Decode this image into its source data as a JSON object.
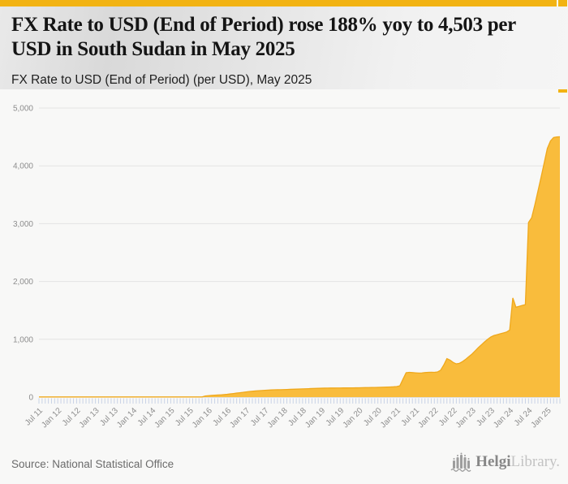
{
  "header": {
    "title": "FX Rate to USD (End of Period) rose 188% yoy to 4,503 per USD in South Sudan in May 2025",
    "subtitle": "FX Rate to USD (End of Period) (per USD), May 2025"
  },
  "footer": {
    "source": "Source: National Statistical Office",
    "logo_bold": "Helgi",
    "logo_light": "Library."
  },
  "colors": {
    "accent": "#F2B313",
    "area_fill": "#F9BC3C",
    "area_stroke": "#EFA81C",
    "gridline": "#e4e4e3",
    "axis_line": "#c8c8c8",
    "tick": "#c9d3e6",
    "axis_label": "#8d8d8d"
  },
  "chart_data": {
    "type": "area",
    "title": "FX Rate to USD (End of Period) (per USD), May 2025",
    "country": "South Sudan",
    "unit": "per USD",
    "frequency": "monthly",
    "start": "2011-07",
    "end": "2025-05",
    "latest": {
      "period": "May 2025",
      "value": 4503,
      "yoy_change_pct": 188
    },
    "values": [
      3,
      3,
      3,
      3,
      3,
      3,
      3,
      3,
      3,
      3,
      3,
      3,
      3,
      3,
      3,
      3,
      3,
      3,
      3,
      3,
      3,
      3,
      3,
      3,
      3,
      3,
      3,
      3,
      3,
      3,
      3,
      3,
      3,
      3,
      3,
      3,
      3,
      3,
      3,
      3,
      3,
      3,
      3,
      3,
      3,
      3,
      3,
      3,
      3,
      3,
      3,
      3,
      3,
      19,
      25,
      30,
      33,
      36,
      39,
      43,
      48,
      55,
      62,
      70,
      76,
      82,
      90,
      96,
      101,
      106,
      110,
      114,
      118,
      121,
      124,
      126,
      127,
      128,
      130,
      132,
      134,
      136,
      138,
      140,
      142,
      144,
      146,
      148,
      150,
      152,
      154,
      155,
      156,
      157,
      157,
      158,
      158,
      159,
      159,
      160,
      160,
      161,
      162,
      163,
      164,
      165,
      166,
      167,
      168,
      170,
      172,
      174,
      176,
      178,
      183,
      195,
      310,
      422,
      428,
      424,
      420,
      416,
      418,
      424,
      428,
      430,
      428,
      435,
      465,
      555,
      665,
      640,
      600,
      575,
      585,
      615,
      655,
      700,
      745,
      800,
      855,
      905,
      955,
      1000,
      1040,
      1065,
      1080,
      1095,
      1110,
      1125,
      1160,
      1715,
      1555,
      1570,
      1585,
      1600,
      3020,
      3100,
      3320,
      3560,
      3800,
      4050,
      4300,
      4430,
      4490,
      4500,
      4503
    ],
    "x_tick_labels": [
      "Jul 11",
      "Jan 12",
      "Jul 12",
      "Jan 13",
      "Jul 13",
      "Jan 14",
      "Jul 14",
      "Jan 15",
      "Jul 15",
      "Jan 16",
      "Jul 16",
      "Jan 17",
      "Jul 17",
      "Jan 18",
      "Jul 18",
      "Jan 19",
      "Jul 19",
      "Jan 20",
      "Jul 20",
      "Jan 21",
      "Jul 21",
      "Jan 22",
      "Jul 22",
      "Jan 23",
      "Jul 23",
      "Jan 24",
      "Jul 24",
      "Jan 25"
    ],
    "x_label_every_n_months": 6,
    "yticks": [
      0,
      1000,
      2000,
      3000,
      4000,
      5000
    ],
    "ytick_labels": [
      "0",
      "1,000",
      "2,000",
      "3,000",
      "4,000",
      "5,000"
    ],
    "ylim": [
      0,
      5000
    ],
    "grid": true,
    "legend": false
  }
}
